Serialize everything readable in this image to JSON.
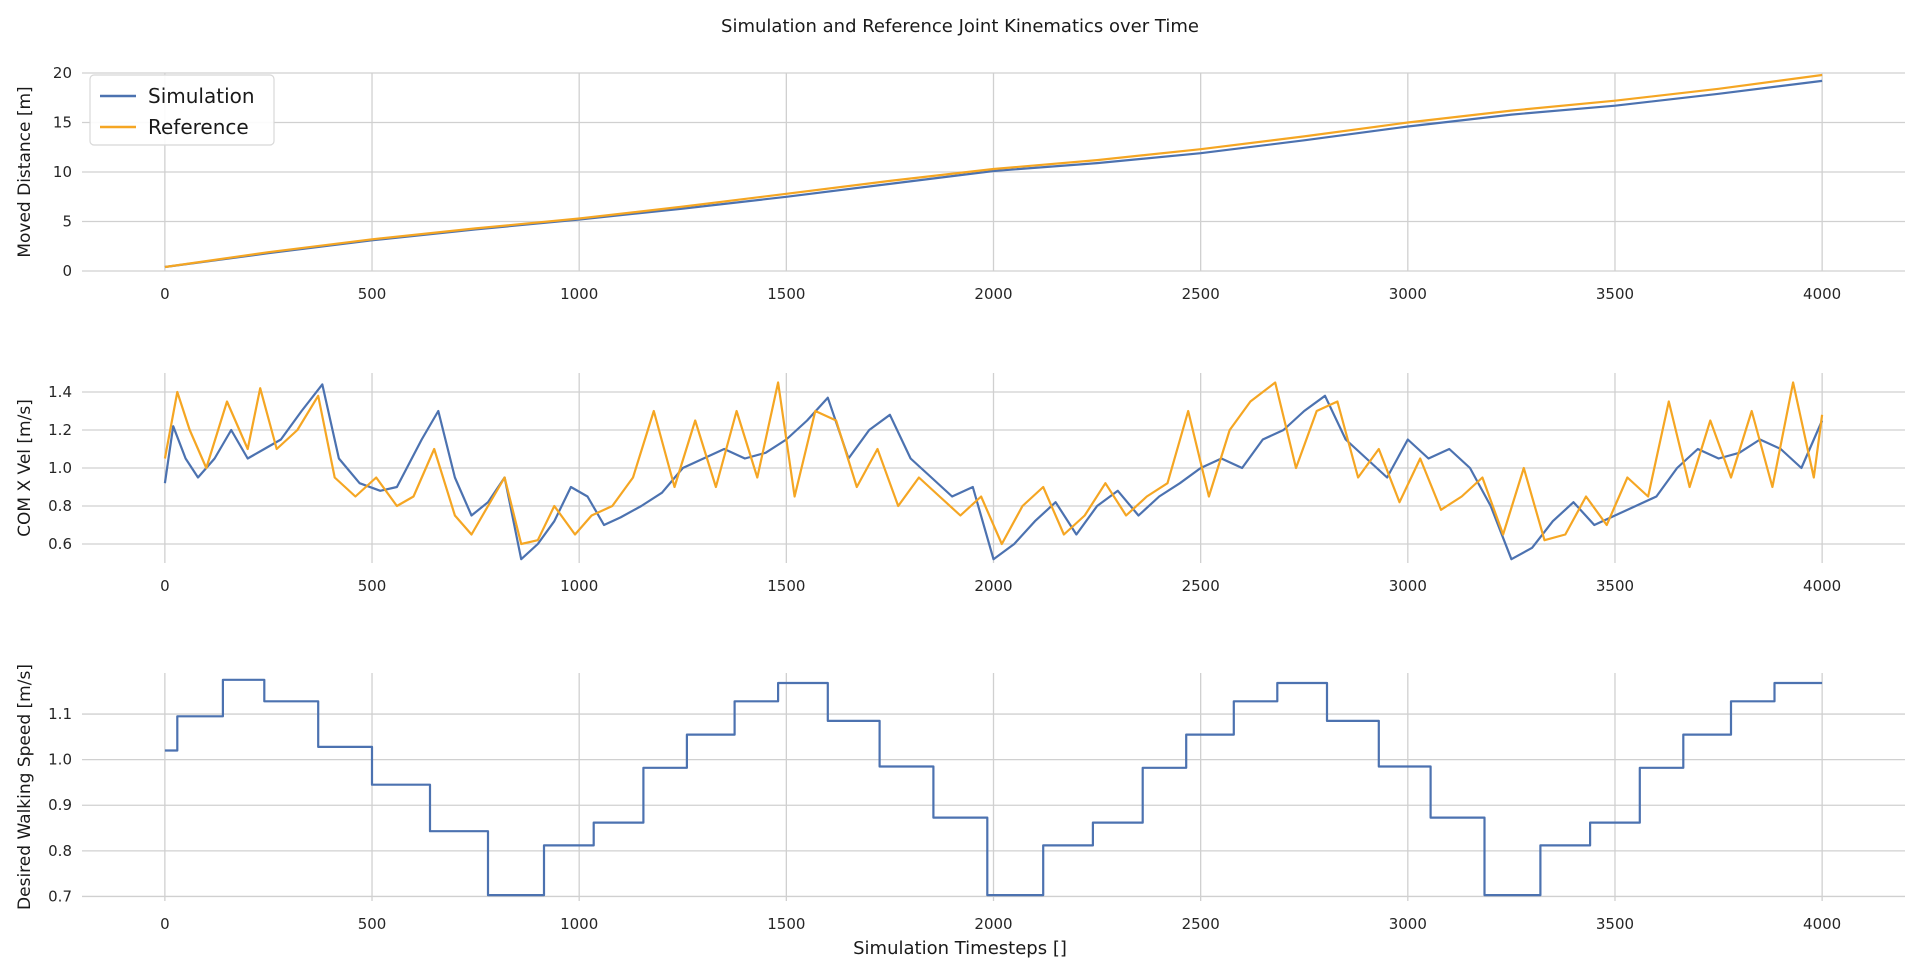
{
  "figure": {
    "title": "Simulation and Reference Joint Kinematics over Time",
    "xlabel": "Simulation Timesteps []"
  },
  "colors": {
    "simulation": "#4c72b0",
    "reference": "#f5a623",
    "grid": "#d0d0d0"
  },
  "chart_data": [
    {
      "type": "line",
      "ylabel": "Moved Distance [m]",
      "xlim": [
        -200,
        4200
      ],
      "ylim": [
        0,
        20
      ],
      "xticks": [
        0,
        500,
        1000,
        1500,
        2000,
        2500,
        3000,
        3500,
        4000
      ],
      "yticks": [
        0,
        5,
        10,
        15,
        20
      ],
      "grid": true,
      "legend": "top-left",
      "series": [
        {
          "name": "Simulation",
          "color": "#4c72b0",
          "x": [
            0,
            250,
            500,
            750,
            1000,
            1250,
            1500,
            1750,
            2000,
            2250,
            2500,
            2750,
            3000,
            3250,
            3500,
            3750,
            4000
          ],
          "y": [
            0.4,
            1.8,
            3.1,
            4.2,
            5.2,
            6.3,
            7.5,
            8.8,
            10.1,
            10.9,
            11.9,
            13.2,
            14.6,
            15.8,
            16.7,
            17.9,
            19.2
          ]
        },
        {
          "name": "Reference",
          "color": "#f5a623",
          "x": [
            0,
            250,
            500,
            750,
            1000,
            1250,
            1500,
            1750,
            2000,
            2250,
            2500,
            2750,
            3000,
            3250,
            3500,
            3750,
            4000
          ],
          "y": [
            0.4,
            1.9,
            3.2,
            4.3,
            5.3,
            6.5,
            7.8,
            9.1,
            10.3,
            11.2,
            12.3,
            13.6,
            15.0,
            16.2,
            17.2,
            18.4,
            19.8
          ]
        }
      ]
    },
    {
      "type": "line",
      "ylabel": "COM X Vel [m/s]",
      "xlim": [
        -200,
        4200
      ],
      "ylim": [
        0.5,
        1.5
      ],
      "xticks": [
        0,
        500,
        1000,
        1500,
        2000,
        2500,
        3000,
        3500,
        4000
      ],
      "yticks": [
        0.6,
        0.8,
        1.0,
        1.2,
        1.4
      ],
      "grid": true,
      "series": [
        {
          "name": "Simulation",
          "color": "#4c72b0",
          "x": [
            0,
            20,
            50,
            80,
            120,
            160,
            200,
            240,
            280,
            330,
            380,
            420,
            470,
            520,
            560,
            620,
            660,
            700,
            740,
            780,
            820,
            860,
            900,
            940,
            980,
            1020,
            1060,
            1100,
            1150,
            1200,
            1250,
            1300,
            1350,
            1400,
            1450,
            1500,
            1550,
            1600,
            1650,
            1700,
            1750,
            1800,
            1850,
            1900,
            1950,
            2000,
            2050,
            2100,
            2150,
            2200,
            2250,
            2300,
            2350,
            2400,
            2450,
            2500,
            2550,
            2600,
            2650,
            2700,
            2750,
            2800,
            2850,
            2900,
            2950,
            3000,
            3050,
            3100,
            3150,
            3200,
            3250,
            3300,
            3350,
            3400,
            3450,
            3500,
            3550,
            3600,
            3650,
            3700,
            3750,
            3800,
            3850,
            3900,
            3950,
            4000
          ],
          "y": [
            0.92,
            1.22,
            1.05,
            0.95,
            1.05,
            1.2,
            1.05,
            1.1,
            1.15,
            1.3,
            1.44,
            1.05,
            0.92,
            0.88,
            0.9,
            1.15,
            1.3,
            0.95,
            0.75,
            0.82,
            0.95,
            0.52,
            0.6,
            0.72,
            0.9,
            0.85,
            0.7,
            0.74,
            0.8,
            0.87,
            1.0,
            1.05,
            1.1,
            1.05,
            1.08,
            1.15,
            1.25,
            1.37,
            1.05,
            1.2,
            1.28,
            1.05,
            0.95,
            0.85,
            0.9,
            0.52,
            0.6,
            0.72,
            0.82,
            0.65,
            0.8,
            0.88,
            0.75,
            0.85,
            0.92,
            1.0,
            1.05,
            1.0,
            1.15,
            1.2,
            1.3,
            1.38,
            1.15,
            1.05,
            0.95,
            1.15,
            1.05,
            1.1,
            1.0,
            0.8,
            0.52,
            0.58,
            0.72,
            0.82,
            0.7,
            0.75,
            0.8,
            0.85,
            1.0,
            1.1,
            1.05,
            1.08,
            1.15,
            1.1,
            1.0,
            1.25
          ]
        },
        {
          "name": "Reference",
          "color": "#f5a623",
          "x": [
            0,
            30,
            60,
            100,
            150,
            200,
            230,
            270,
            320,
            370,
            410,
            460,
            510,
            560,
            600,
            650,
            700,
            740,
            780,
            820,
            860,
            900,
            940,
            990,
            1030,
            1080,
            1130,
            1180,
            1230,
            1280,
            1330,
            1380,
            1430,
            1480,
            1520,
            1570,
            1620,
            1670,
            1720,
            1770,
            1820,
            1870,
            1920,
            1970,
            2020,
            2070,
            2120,
            2170,
            2220,
            2270,
            2320,
            2370,
            2420,
            2470,
            2520,
            2570,
            2620,
            2680,
            2730,
            2780,
            2830,
            2880,
            2930,
            2980,
            3030,
            3080,
            3130,
            3180,
            3230,
            3280,
            3330,
            3380,
            3430,
            3480,
            3530,
            3580,
            3630,
            3680,
            3730,
            3780,
            3830,
            3880,
            3930,
            3980,
            4000
          ],
          "y": [
            1.05,
            1.4,
            1.2,
            1.0,
            1.35,
            1.1,
            1.42,
            1.1,
            1.2,
            1.38,
            0.95,
            0.85,
            0.95,
            0.8,
            0.85,
            1.1,
            0.75,
            0.65,
            0.8,
            0.95,
            0.6,
            0.62,
            0.8,
            0.65,
            0.75,
            0.8,
            0.95,
            1.3,
            0.9,
            1.25,
            0.9,
            1.3,
            0.95,
            1.45,
            0.85,
            1.3,
            1.25,
            0.9,
            1.1,
            0.8,
            0.95,
            0.85,
            0.75,
            0.85,
            0.6,
            0.8,
            0.9,
            0.65,
            0.75,
            0.92,
            0.75,
            0.85,
            0.92,
            1.3,
            0.85,
            1.2,
            1.35,
            1.45,
            1.0,
            1.3,
            1.35,
            0.95,
            1.1,
            0.82,
            1.05,
            0.78,
            0.85,
            0.95,
            0.65,
            1.0,
            0.62,
            0.65,
            0.85,
            0.7,
            0.95,
            0.85,
            1.35,
            0.9,
            1.25,
            0.95,
            1.3,
            0.9,
            1.45,
            0.95,
            1.28
          ]
        }
      ]
    },
    {
      "type": "line",
      "ylabel": "Desired Walking Speed [m/s]",
      "xlim": [
        -200,
        4200
      ],
      "ylim": [
        0.69,
        1.19
      ],
      "xticks": [
        0,
        500,
        1000,
        1500,
        2000,
        2500,
        3000,
        3500,
        4000
      ],
      "yticks": [
        0.7,
        0.8,
        0.9,
        1.0,
        1.1
      ],
      "grid": true,
      "step": true,
      "series": [
        {
          "color": "#4c72b0",
          "x": [
            0,
            30,
            140,
            240,
            370,
            500,
            640,
            780,
            915,
            1035,
            1155,
            1260,
            1375,
            1480,
            1600,
            1725,
            1855,
            1985,
            2120,
            2240,
            2360,
            2465,
            2580,
            2685,
            2805,
            2930,
            3055,
            3185,
            3320,
            3440,
            3560,
            3665,
            3780,
            3885,
            4000
          ],
          "y": [
            1.02,
            1.095,
            1.175,
            1.128,
            1.028,
            0.945,
            0.843,
            0.703,
            0.812,
            0.862,
            0.982,
            1.055,
            1.128,
            1.168,
            1.085,
            0.985,
            0.873,
            0.703,
            0.812,
            0.862,
            0.982,
            1.055,
            1.128,
            1.168,
            1.085,
            0.985,
            0.873,
            0.703,
            0.812,
            0.862,
            0.982,
            1.055,
            1.128,
            1.168,
            1.168
          ]
        }
      ]
    }
  ]
}
